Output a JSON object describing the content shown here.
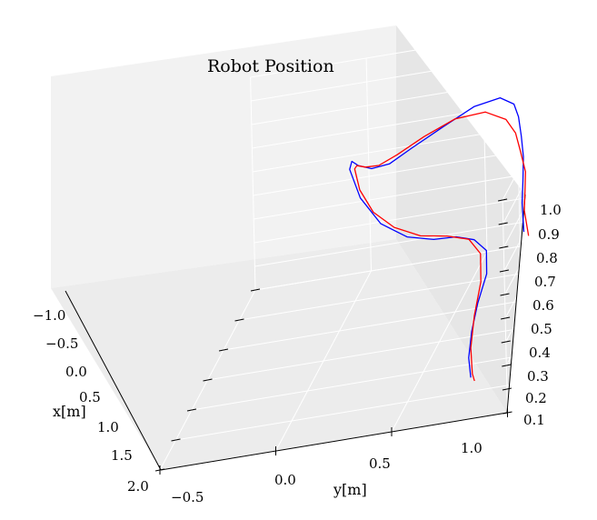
{
  "chart_data": {
    "type": "line3d",
    "title": "Robot Position",
    "xlabel": "x[m]",
    "ylabel": "y[m]",
    "zlabel": "",
    "x_ticks": [
      "−1.0",
      "−0.5",
      "0.0",
      "0.5",
      "1.0",
      "1.5",
      "2.0"
    ],
    "y_ticks": [
      "−0.5",
      "0.0",
      "0.5",
      "1.0"
    ],
    "z_ticks": [
      "0.1",
      "0.2",
      "0.3",
      "0.4",
      "0.5",
      "0.6",
      "0.7",
      "0.8",
      "0.9",
      "1.0"
    ],
    "xlim": [
      -1.0,
      2.0
    ],
    "ylim": [
      -0.5,
      1.0
    ],
    "zlim": [
      0.1,
      1.0
    ],
    "grid": true,
    "colors": {
      "series_a": "#0000ff",
      "series_b": "#ff0000",
      "pane_back": "#f2f2f2",
      "pane_side": "#e6e6e6",
      "pane_floor": "#ececec"
    },
    "series": [
      {
        "color": "#0000ff",
        "points": [
          [
            -0.3,
            0.76,
            0.32
          ],
          [
            -0.27,
            0.76,
            0.45
          ],
          [
            -0.24,
            0.77,
            0.55
          ],
          [
            -0.2,
            0.78,
            0.66
          ],
          [
            -0.15,
            0.78,
            0.76
          ],
          [
            -0.08,
            0.78,
            0.86
          ],
          [
            -0.02,
            0.77,
            0.93
          ],
          [
            0.04,
            0.72,
            0.98
          ],
          [
            0.12,
            0.62,
            0.98
          ],
          [
            0.22,
            0.5,
            0.94
          ],
          [
            0.34,
            0.38,
            0.9
          ],
          [
            0.48,
            0.3,
            0.88
          ],
          [
            0.6,
            0.24,
            0.9
          ],
          [
            0.72,
            0.2,
            0.95
          ],
          [
            0.84,
            0.19,
            1.0
          ],
          [
            0.98,
            0.2,
            1.0
          ],
          [
            1.1,
            0.26,
            0.9
          ],
          [
            1.2,
            0.36,
            0.8
          ],
          [
            1.26,
            0.48,
            0.74
          ],
          [
            1.3,
            0.6,
            0.72
          ],
          [
            1.32,
            0.7,
            0.72
          ],
          [
            1.34,
            0.78,
            0.7
          ],
          [
            1.4,
            0.84,
            0.66
          ],
          [
            1.48,
            0.85,
            0.58
          ],
          [
            1.56,
            0.82,
            0.48
          ],
          [
            1.62,
            0.8,
            0.38
          ],
          [
            1.66,
            0.79,
            0.28
          ],
          [
            1.68,
            0.8,
            0.2
          ]
        ]
      },
      {
        "color": "#ff0000",
        "points": [
          [
            -0.3,
            0.78,
            0.3
          ],
          [
            -0.26,
            0.77,
            0.42
          ],
          [
            -0.22,
            0.78,
            0.5
          ],
          [
            -0.18,
            0.79,
            0.6
          ],
          [
            -0.12,
            0.78,
            0.7
          ],
          [
            -0.05,
            0.77,
            0.8
          ],
          [
            0.02,
            0.74,
            0.88
          ],
          [
            0.08,
            0.66,
            0.94
          ],
          [
            0.16,
            0.54,
            0.95
          ],
          [
            0.26,
            0.42,
            0.92
          ],
          [
            0.38,
            0.32,
            0.89
          ],
          [
            0.52,
            0.26,
            0.89
          ],
          [
            0.64,
            0.22,
            0.92
          ],
          [
            0.76,
            0.2,
            0.96
          ],
          [
            0.9,
            0.21,
            0.98
          ],
          [
            1.04,
            0.25,
            0.92
          ],
          [
            1.14,
            0.32,
            0.84
          ],
          [
            1.22,
            0.42,
            0.78
          ],
          [
            1.28,
            0.54,
            0.74
          ],
          [
            1.32,
            0.66,
            0.73
          ],
          [
            1.36,
            0.76,
            0.71
          ],
          [
            1.44,
            0.82,
            0.66
          ],
          [
            1.52,
            0.83,
            0.56
          ],
          [
            1.6,
            0.81,
            0.44
          ],
          [
            1.66,
            0.8,
            0.32
          ],
          [
            1.7,
            0.81,
            0.22
          ],
          [
            1.71,
            0.82,
            0.19
          ]
        ]
      }
    ]
  }
}
